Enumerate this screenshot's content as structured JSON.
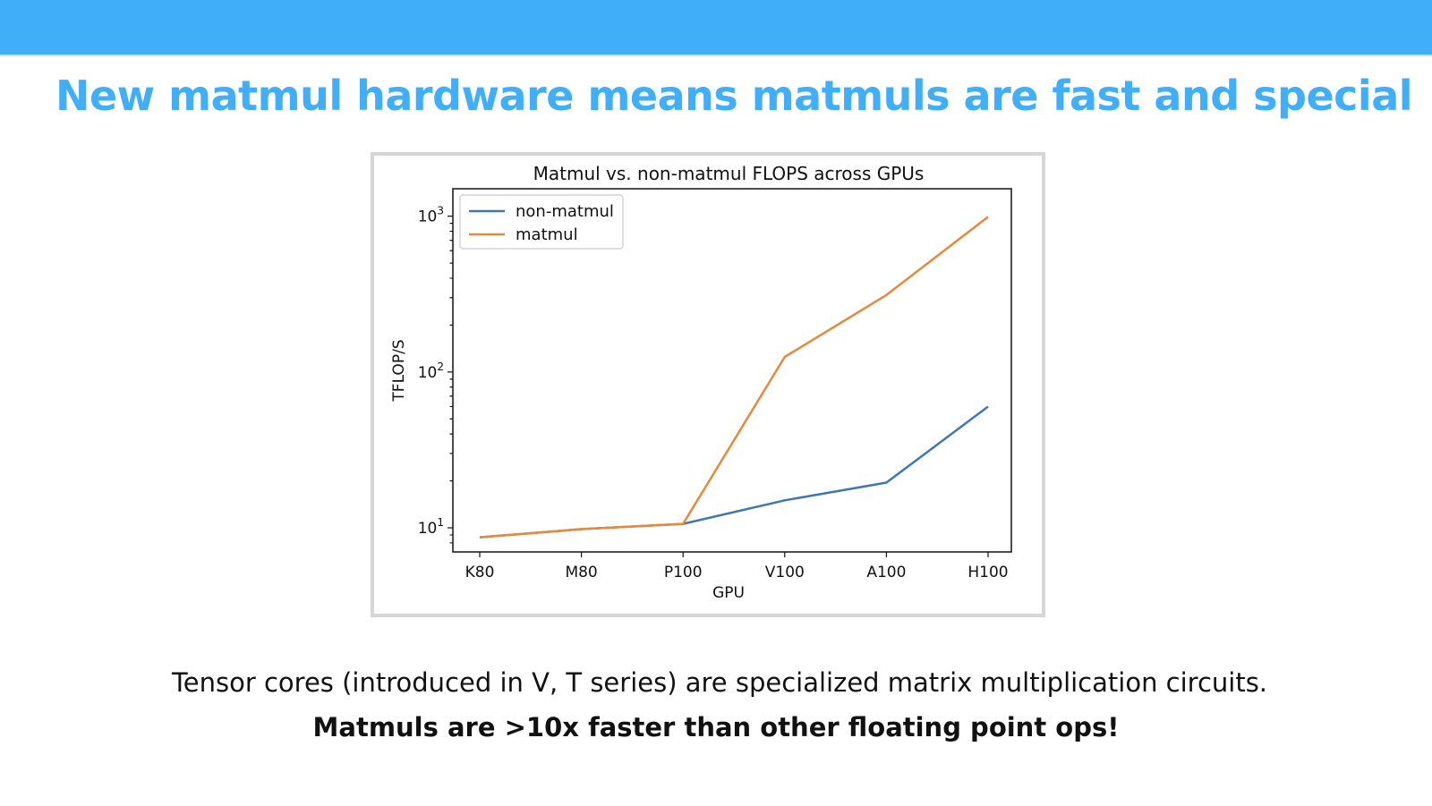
{
  "slide": {
    "title": "New matmul hardware means matmuls are fast and special",
    "caption_line1": "Tensor cores (introduced in V, T series) are specialized matrix multiplication circuits.",
    "caption_line2": "Matmuls are >10x faster than other floating point ops!"
  },
  "colors": {
    "accent": "#41aef9",
    "non_matmul": "#3f77b0",
    "matmul": "#e8883a"
  },
  "chart_data": {
    "type": "line",
    "title": "Matmul vs. non-matmul FLOPS across GPUs",
    "xlabel": "GPU",
    "ylabel": "TFLOP/S",
    "categories": [
      "K80",
      "M80",
      "P100",
      "V100",
      "A100",
      "H100"
    ],
    "yscale": "log",
    "ylim": [
      7,
      1500
    ],
    "yticks": [
      {
        "value": 10,
        "base": "10",
        "exp": "1"
      },
      {
        "value": 100,
        "base": "10",
        "exp": "2"
      },
      {
        "value": 1000,
        "base": "10",
        "exp": "3"
      }
    ],
    "series": [
      {
        "name": "non-matmul",
        "color": "#3f77b0",
        "values": [
          8.7,
          9.8,
          10.6,
          15,
          19.5,
          60
        ]
      },
      {
        "name": "matmul",
        "color": "#e8883a",
        "values": [
          8.7,
          9.8,
          10.6,
          125,
          312,
          990
        ]
      }
    ],
    "legend": "upper-left",
    "grid": false
  }
}
